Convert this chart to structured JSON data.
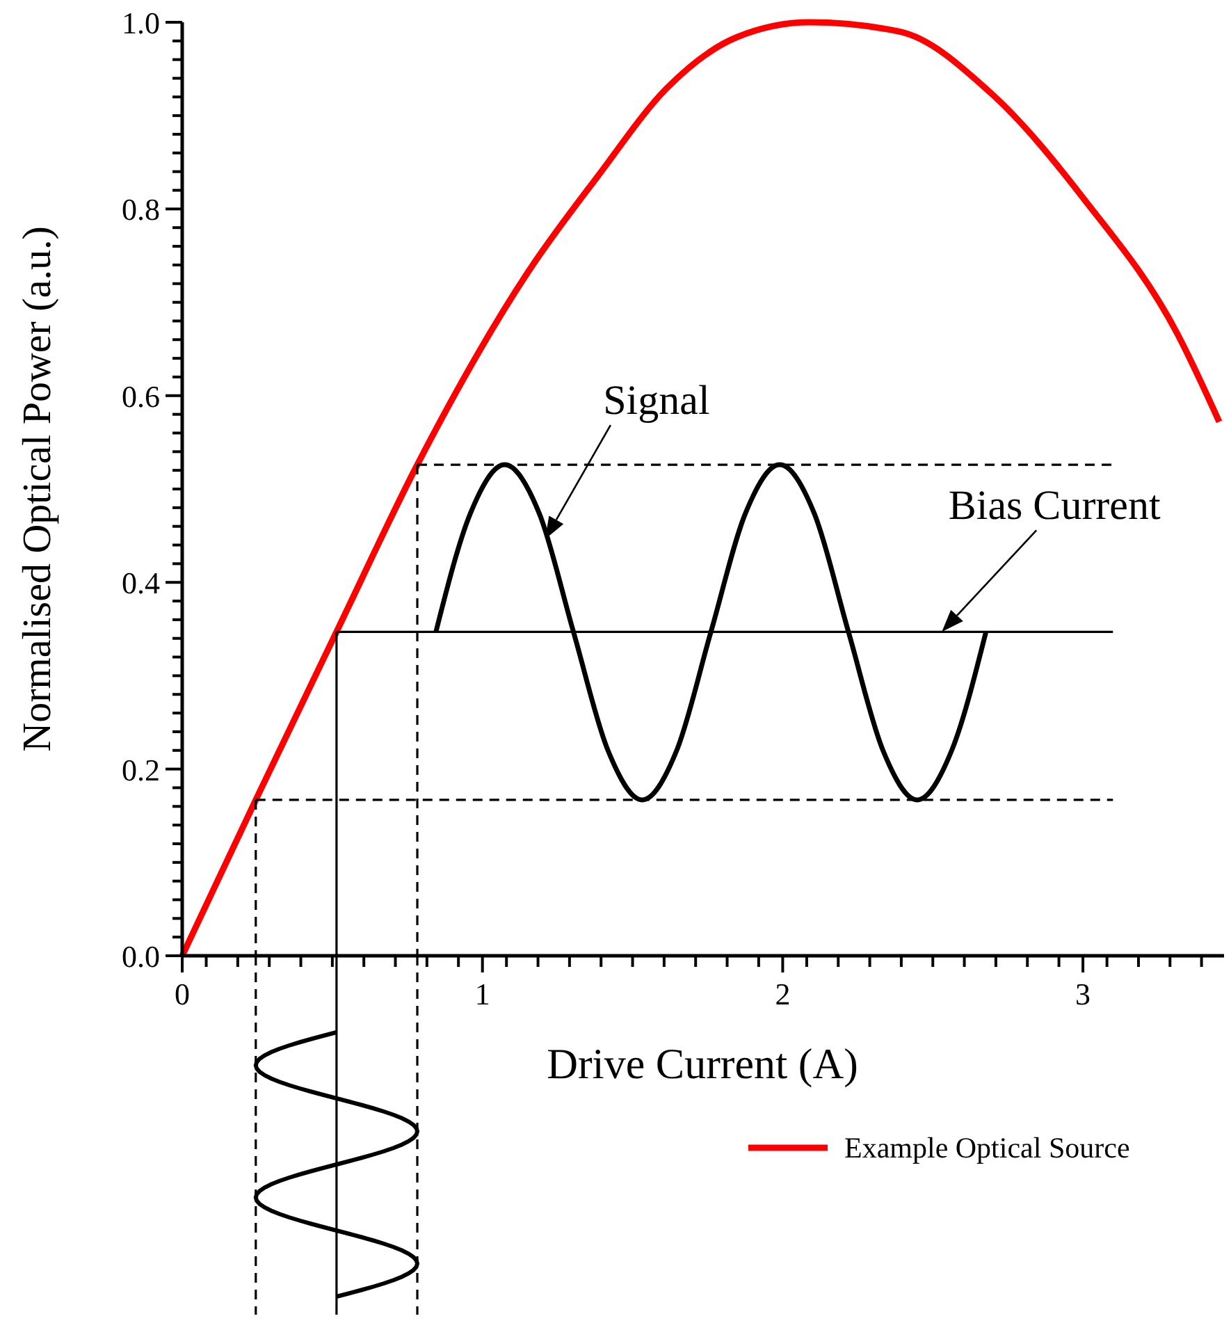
{
  "chart_data": {
    "type": "line",
    "xlabel": "Drive Current (A)",
    "ylabel": "Normalised Optical Power (a.u.)",
    "xlim": [
      0,
      3.47
    ],
    "ylim": [
      0,
      1.0
    ],
    "xticks": [
      {
        "value": 0,
        "label": "0"
      },
      {
        "value": 0.08,
        "label": null
      },
      {
        "value": 0.185,
        "label": null
      },
      {
        "value": 0.29,
        "label": null
      },
      {
        "value": 0.395,
        "label": null
      },
      {
        "value": 0.5,
        "label": null
      },
      {
        "value": 0.605,
        "label": null
      },
      {
        "value": 0.71,
        "label": null
      },
      {
        "value": 0.815,
        "label": null
      },
      {
        "value": 0.92,
        "label": null
      },
      1,
      {
        "value": 1.08,
        "label": null
      },
      {
        "value": 1.185,
        "label": null
      },
      {
        "value": 1.29,
        "label": null
      },
      {
        "value": 1.395,
        "label": null
      },
      {
        "value": 1.5,
        "label": null
      },
      {
        "value": 1.605,
        "label": null
      },
      {
        "value": 1.71,
        "label": null
      },
      {
        "value": 1.815,
        "label": null
      },
      {
        "value": 1.92,
        "label": null
      },
      2,
      {
        "value": 2.08,
        "label": null
      },
      {
        "value": 2.185,
        "label": null
      },
      {
        "value": 2.29,
        "label": null
      },
      {
        "value": 2.395,
        "label": null
      },
      {
        "value": 2.5,
        "label": null
      },
      {
        "value": 2.605,
        "label": null
      },
      {
        "value": 2.71,
        "label": null
      },
      {
        "value": 2.815,
        "label": null
      },
      {
        "value": 2.92,
        "label": null
      },
      3,
      {
        "value": 3.08,
        "label": null
      },
      {
        "value": 3.185,
        "label": null
      },
      {
        "value": 3.29,
        "label": null
      },
      {
        "value": 3.395,
        "label": null
      }
    ],
    "yticks": [
      {
        "value": 0,
        "label": "0.0"
      },
      {
        "value": 0.02,
        "label": null
      },
      {
        "value": 0.04,
        "label": null
      },
      {
        "value": 0.06,
        "label": null
      },
      {
        "value": 0.08,
        "label": null
      },
      {
        "value": 0.1,
        "label": null
      },
      {
        "value": 0.12,
        "label": null
      },
      {
        "value": 0.14,
        "label": null
      },
      {
        "value": 0.16,
        "label": null
      },
      {
        "value": 0.18,
        "label": null
      },
      0.2,
      {
        "value": 0.22,
        "label": null
      },
      {
        "value": 0.24,
        "label": null
      },
      {
        "value": 0.26,
        "label": null
      },
      {
        "value": 0.28,
        "label": null
      },
      {
        "value": 0.3,
        "label": null
      },
      {
        "value": 0.32,
        "label": null
      },
      {
        "value": 0.34,
        "label": null
      },
      {
        "value": 0.36,
        "label": null
      },
      {
        "value": 0.38,
        "label": null
      },
      0.4,
      {
        "value": 0.42,
        "label": null
      },
      {
        "value": 0.44,
        "label": null
      },
      {
        "value": 0.46,
        "label": null
      },
      {
        "value": 0.48,
        "label": null
      },
      {
        "value": 0.5,
        "label": null
      },
      {
        "value": 0.52,
        "label": null
      },
      {
        "value": 0.54,
        "label": null
      },
      {
        "value": 0.56,
        "label": null
      },
      {
        "value": 0.58,
        "label": null
      },
      0.6,
      {
        "value": 0.62,
        "label": null
      },
      {
        "value": 0.64,
        "label": null
      },
      {
        "value": 0.66,
        "label": null
      },
      {
        "value": 0.68,
        "label": null
      },
      {
        "value": 0.7,
        "label": null
      },
      {
        "value": 0.72,
        "label": null
      },
      {
        "value": 0.74,
        "label": null
      },
      {
        "value": 0.76,
        "label": null
      },
      {
        "value": 0.78,
        "label": null
      },
      0.8,
      {
        "value": 0.82,
        "label": null
      },
      {
        "value": 0.84,
        "label": null
      },
      {
        "value": 0.86,
        "label": null
      },
      {
        "value": 0.88,
        "label": null
      },
      {
        "value": 0.9,
        "label": null
      },
      {
        "value": 0.92,
        "label": null
      },
      {
        "value": 0.94,
        "label": null
      },
      {
        "value": 0.96,
        "label": null
      },
      {
        "value": 0.98,
        "label": null
      },
      {
        "value": 1.0,
        "label": "1.0"
      }
    ],
    "grid": false,
    "legend": "bottom right",
    "series": [
      {
        "name": "Example Optical Source",
        "color": "#ff0000",
        "line_style": "solid",
        "x": [
          0,
          0.245,
          0.514,
          0.783,
          1.153,
          1.384,
          1.616,
          1.847,
          2.09,
          2.389,
          2.694,
          3.005,
          3.315,
          3.454
        ],
        "values": [
          0,
          0.167,
          0.347,
          0.526,
          0.733,
          0.835,
          0.93,
          0.984,
          1.0,
          0.99,
          0.924,
          0.81,
          0.666,
          0.572
        ]
      },
      {
        "color": "#000000",
        "line_style": "solid",
        "x": [
          0.845,
          0.96,
          1.074,
          1.189,
          1.303,
          1.418,
          1.532,
          1.647,
          1.761,
          1.876,
          1.99,
          2.105,
          2.219,
          2.334,
          2.448,
          2.563,
          2.677
        ],
        "values": [
          0.347,
          0.474,
          0.526,
          0.474,
          0.347,
          0.22,
          0.167,
          0.22,
          0.347,
          0.474,
          0.526,
          0.474,
          0.347,
          0.22,
          0.167,
          0.22,
          0.347
        ]
      },
      {
        "color": "#000000",
        "line_style": "solid",
        "x": [
          0.514,
          3.1
        ],
        "values": [
          0.347,
          0.347
        ]
      },
      {
        "color": "#000000",
        "line_style": "dashed",
        "x": [
          0.783,
          3.1
        ],
        "values": [
          0.526,
          0.526
        ]
      },
      {
        "color": "#000000",
        "line_style": "dashed",
        "x": [
          0.245,
          3.1
        ],
        "values": [
          0.167,
          0.167
        ]
      },
      {
        "color": "#000000",
        "line_style": "solid",
        "x": [
          0.514,
          0.514
        ],
        "values": [
          0.347,
          0
        ]
      },
      {
        "color": "#000000",
        "line_style": "dashed",
        "x": [
          0.245,
          0.245
        ],
        "values": [
          0.167,
          0
        ]
      },
      {
        "color": "#000000",
        "line_style": "dashed",
        "x": [
          0.783,
          0.783
        ],
        "values": [
          0.526,
          0
        ]
      }
    ],
    "annotations": [
      "Signal",
      {
        "text": "Bias Current",
        "x": 2.53,
        "y": 0.347
      }
    ]
  }
}
